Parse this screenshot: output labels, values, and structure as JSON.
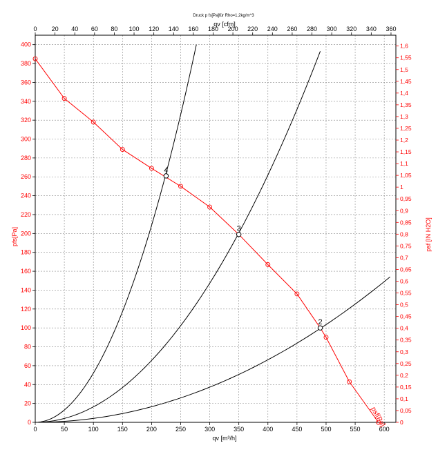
{
  "chart_data": {
    "type": "line",
    "title": "Druck p fs[Pa]für Rho=1,2kg/m^3",
    "xlabel_bottom": "qv [m³/h]",
    "xlabel_top": "qv [cfm]",
    "ylabel_left": "pfs[Pa]",
    "ylabel_right": "psf [IN H2O]",
    "xlim": [
      0,
      620
    ],
    "ylim": [
      0,
      410
    ],
    "x_ticks": [
      "0",
      "50",
      "100",
      "150",
      "200",
      "250",
      "300",
      "350",
      "400",
      "450",
      "500",
      "550",
      "600"
    ],
    "y_ticks": [
      "0",
      "20",
      "40",
      "60",
      "80",
      "100",
      "120",
      "140",
      "160",
      "180",
      "200",
      "220",
      "240",
      "260",
      "280",
      "300",
      "320",
      "340",
      "360",
      "380",
      "400"
    ],
    "top_ticks": [
      "0",
      "20",
      "40",
      "60",
      "80",
      "100",
      "120",
      "140",
      "160",
      "180",
      "200",
      "220",
      "240",
      "260",
      "280",
      "300",
      "320",
      "340",
      "360"
    ],
    "right_ticks": [
      "0",
      "0,05",
      "0,1",
      "0,15",
      "0,2",
      "0,25",
      "0,3",
      "0,35",
      "0,4",
      "0,45",
      "0,5",
      "0,55",
      "0,6",
      "0,65",
      "0,7",
      "0,75",
      "0,8",
      "0,85",
      "0,9",
      "0,95",
      "1",
      "1,05",
      "1,1",
      "1,15",
      "1,2",
      "1,25",
      "1,3",
      "1,35",
      "1,4",
      "1,45",
      "1,5",
      "1,55",
      "1,6"
    ],
    "grid": true,
    "fan_curve": {
      "name": "pfs[Pa]",
      "color": "#ff0000",
      "points": [
        [
          0,
          385
        ],
        [
          50,
          343
        ],
        [
          100,
          318
        ],
        [
          150,
          289
        ],
        [
          200,
          269
        ],
        [
          250,
          250
        ],
        [
          300,
          228
        ],
        [
          350,
          199
        ],
        [
          400,
          167
        ],
        [
          450,
          136
        ],
        [
          490,
          100
        ],
        [
          500,
          90
        ],
        [
          540,
          43
        ],
        [
          590,
          0
        ]
      ]
    },
    "system_curves": [
      {
        "color": "#000000",
        "x": [
          0,
          610
        ],
        "y": [
          0,
          154
        ]
      },
      {
        "color": "#000000",
        "x": [
          0,
          490
        ],
        "y": [
          0,
          393
        ]
      },
      {
        "color": "#000000",
        "x": [
          0,
          277
        ],
        "y": [
          0,
          400
        ]
      }
    ],
    "operating_points": [
      {
        "label": "2",
        "x": 490,
        "y": 100
      },
      {
        "label": "3",
        "x": 350,
        "y": 199
      },
      {
        "label": "4",
        "x": 225,
        "y": 261
      }
    ],
    "end_label": "psf[Pa]",
    "colors": {
      "fan": "#ff0000",
      "system": "#000000",
      "grid": "#8a8a8a",
      "frame": "#000000"
    }
  }
}
